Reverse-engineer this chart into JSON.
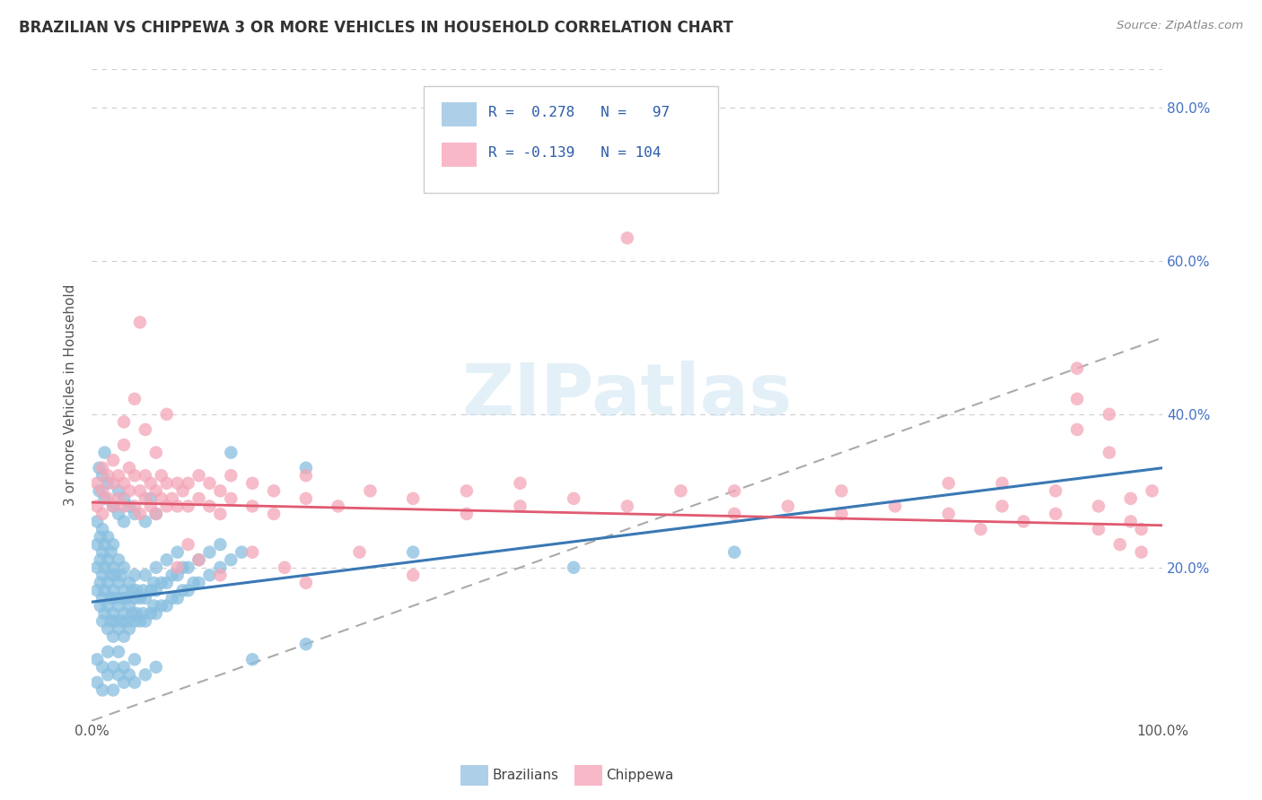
{
  "title": "BRAZILIAN VS CHIPPEWA 3 OR MORE VEHICLES IN HOUSEHOLD CORRELATION CHART",
  "source_text": "Source: ZipAtlas.com",
  "ylabel": "3 or more Vehicles in Household",
  "xlim": [
    0.0,
    1.0
  ],
  "ylim": [
    0.0,
    0.85
  ],
  "xtick_labels": [
    "0.0%",
    "",
    "",
    "",
    "",
    "100.0%"
  ],
  "xtick_vals": [
    0.0,
    0.2,
    0.4,
    0.6,
    0.8,
    1.0
  ],
  "ytick_labels_right": [
    "20.0%",
    "40.0%",
    "60.0%",
    "80.0%"
  ],
  "ytick_vals": [
    0.2,
    0.4,
    0.6,
    0.8
  ],
  "blue_color": "#89bfe0",
  "pink_color": "#f4a6b8",
  "blue_fill": "#aecfe8",
  "pink_fill": "#f9b8c8",
  "trend_blue": "#3a78b5",
  "trend_pink": "#e05a70",
  "watermark": "ZIPatlas",
  "background_color": "#ffffff",
  "grid_color": "#cccccc",
  "blue_trend": [
    0.0,
    0.155,
    1.0,
    0.33
  ],
  "pink_trend": [
    0.0,
    0.285,
    1.0,
    0.255
  ],
  "diag_line": [
    0.0,
    0.0,
    1.0,
    0.5
  ],
  "blue_scatter": [
    [
      0.005,
      0.17
    ],
    [
      0.005,
      0.2
    ],
    [
      0.005,
      0.23
    ],
    [
      0.005,
      0.26
    ],
    [
      0.008,
      0.15
    ],
    [
      0.008,
      0.18
    ],
    [
      0.008,
      0.21
    ],
    [
      0.008,
      0.24
    ],
    [
      0.01,
      0.13
    ],
    [
      0.01,
      0.16
    ],
    [
      0.01,
      0.19
    ],
    [
      0.01,
      0.22
    ],
    [
      0.01,
      0.25
    ],
    [
      0.012,
      0.14
    ],
    [
      0.012,
      0.17
    ],
    [
      0.012,
      0.2
    ],
    [
      0.012,
      0.23
    ],
    [
      0.015,
      0.12
    ],
    [
      0.015,
      0.15
    ],
    [
      0.015,
      0.18
    ],
    [
      0.015,
      0.21
    ],
    [
      0.015,
      0.24
    ],
    [
      0.018,
      0.13
    ],
    [
      0.018,
      0.16
    ],
    [
      0.018,
      0.19
    ],
    [
      0.018,
      0.22
    ],
    [
      0.02,
      0.11
    ],
    [
      0.02,
      0.14
    ],
    [
      0.02,
      0.17
    ],
    [
      0.02,
      0.2
    ],
    [
      0.02,
      0.23
    ],
    [
      0.022,
      0.13
    ],
    [
      0.022,
      0.16
    ],
    [
      0.022,
      0.19
    ],
    [
      0.025,
      0.12
    ],
    [
      0.025,
      0.15
    ],
    [
      0.025,
      0.18
    ],
    [
      0.025,
      0.21
    ],
    [
      0.028,
      0.13
    ],
    [
      0.028,
      0.16
    ],
    [
      0.028,
      0.19
    ],
    [
      0.03,
      0.11
    ],
    [
      0.03,
      0.14
    ],
    [
      0.03,
      0.17
    ],
    [
      0.03,
      0.2
    ],
    [
      0.033,
      0.13
    ],
    [
      0.033,
      0.16
    ],
    [
      0.035,
      0.12
    ],
    [
      0.035,
      0.15
    ],
    [
      0.035,
      0.18
    ],
    [
      0.038,
      0.14
    ],
    [
      0.038,
      0.17
    ],
    [
      0.04,
      0.13
    ],
    [
      0.04,
      0.16
    ],
    [
      0.04,
      0.19
    ],
    [
      0.042,
      0.14
    ],
    [
      0.042,
      0.17
    ],
    [
      0.045,
      0.13
    ],
    [
      0.045,
      0.16
    ],
    [
      0.048,
      0.14
    ],
    [
      0.048,
      0.17
    ],
    [
      0.05,
      0.13
    ],
    [
      0.05,
      0.16
    ],
    [
      0.05,
      0.19
    ],
    [
      0.055,
      0.14
    ],
    [
      0.055,
      0.17
    ],
    [
      0.058,
      0.15
    ],
    [
      0.058,
      0.18
    ],
    [
      0.06,
      0.14
    ],
    [
      0.06,
      0.17
    ],
    [
      0.06,
      0.2
    ],
    [
      0.065,
      0.15
    ],
    [
      0.065,
      0.18
    ],
    [
      0.07,
      0.15
    ],
    [
      0.07,
      0.18
    ],
    [
      0.07,
      0.21
    ],
    [
      0.075,
      0.16
    ],
    [
      0.075,
      0.19
    ],
    [
      0.08,
      0.16
    ],
    [
      0.08,
      0.19
    ],
    [
      0.08,
      0.22
    ],
    [
      0.085,
      0.17
    ],
    [
      0.085,
      0.2
    ],
    [
      0.09,
      0.17
    ],
    [
      0.09,
      0.2
    ],
    [
      0.095,
      0.18
    ],
    [
      0.1,
      0.18
    ],
    [
      0.1,
      0.21
    ],
    [
      0.11,
      0.19
    ],
    [
      0.11,
      0.22
    ],
    [
      0.12,
      0.2
    ],
    [
      0.12,
      0.23
    ],
    [
      0.13,
      0.21
    ],
    [
      0.14,
      0.22
    ],
    [
      0.005,
      0.08
    ],
    [
      0.005,
      0.05
    ],
    [
      0.01,
      0.07
    ],
    [
      0.01,
      0.04
    ],
    [
      0.015,
      0.06
    ],
    [
      0.015,
      0.09
    ],
    [
      0.02,
      0.07
    ],
    [
      0.02,
      0.04
    ],
    [
      0.025,
      0.06
    ],
    [
      0.025,
      0.09
    ],
    [
      0.03,
      0.07
    ],
    [
      0.03,
      0.05
    ],
    [
      0.035,
      0.06
    ],
    [
      0.04,
      0.05
    ],
    [
      0.04,
      0.08
    ],
    [
      0.05,
      0.06
    ],
    [
      0.06,
      0.07
    ],
    [
      0.007,
      0.3
    ],
    [
      0.007,
      0.33
    ],
    [
      0.01,
      0.32
    ],
    [
      0.012,
      0.29
    ],
    [
      0.012,
      0.35
    ],
    [
      0.015,
      0.31
    ],
    [
      0.02,
      0.28
    ],
    [
      0.025,
      0.27
    ],
    [
      0.025,
      0.3
    ],
    [
      0.03,
      0.26
    ],
    [
      0.03,
      0.29
    ],
    [
      0.035,
      0.28
    ],
    [
      0.04,
      0.27
    ],
    [
      0.05,
      0.26
    ],
    [
      0.055,
      0.29
    ],
    [
      0.06,
      0.27
    ],
    [
      0.13,
      0.35
    ],
    [
      0.2,
      0.33
    ],
    [
      0.2,
      0.1
    ],
    [
      0.15,
      0.08
    ],
    [
      0.3,
      0.22
    ],
    [
      0.45,
      0.2
    ],
    [
      0.6,
      0.22
    ]
  ],
  "pink_scatter": [
    [
      0.005,
      0.28
    ],
    [
      0.005,
      0.31
    ],
    [
      0.01,
      0.27
    ],
    [
      0.01,
      0.3
    ],
    [
      0.01,
      0.33
    ],
    [
      0.015,
      0.29
    ],
    [
      0.015,
      0.32
    ],
    [
      0.02,
      0.28
    ],
    [
      0.02,
      0.31
    ],
    [
      0.02,
      0.34
    ],
    [
      0.025,
      0.29
    ],
    [
      0.025,
      0.32
    ],
    [
      0.03,
      0.28
    ],
    [
      0.03,
      0.31
    ],
    [
      0.035,
      0.3
    ],
    [
      0.035,
      0.33
    ],
    [
      0.04,
      0.28
    ],
    [
      0.04,
      0.32
    ],
    [
      0.045,
      0.3
    ],
    [
      0.045,
      0.27
    ],
    [
      0.05,
      0.29
    ],
    [
      0.05,
      0.32
    ],
    [
      0.055,
      0.28
    ],
    [
      0.055,
      0.31
    ],
    [
      0.06,
      0.3
    ],
    [
      0.06,
      0.27
    ],
    [
      0.065,
      0.29
    ],
    [
      0.065,
      0.32
    ],
    [
      0.07,
      0.28
    ],
    [
      0.07,
      0.31
    ],
    [
      0.075,
      0.29
    ],
    [
      0.08,
      0.28
    ],
    [
      0.08,
      0.31
    ],
    [
      0.085,
      0.3
    ],
    [
      0.09,
      0.28
    ],
    [
      0.09,
      0.31
    ],
    [
      0.1,
      0.29
    ],
    [
      0.1,
      0.32
    ],
    [
      0.11,
      0.28
    ],
    [
      0.11,
      0.31
    ],
    [
      0.12,
      0.3
    ],
    [
      0.12,
      0.27
    ],
    [
      0.13,
      0.29
    ],
    [
      0.13,
      0.32
    ],
    [
      0.15,
      0.28
    ],
    [
      0.15,
      0.31
    ],
    [
      0.17,
      0.3
    ],
    [
      0.17,
      0.27
    ],
    [
      0.2,
      0.29
    ],
    [
      0.2,
      0.32
    ],
    [
      0.23,
      0.28
    ],
    [
      0.26,
      0.3
    ],
    [
      0.3,
      0.29
    ],
    [
      0.35,
      0.27
    ],
    [
      0.35,
      0.3
    ],
    [
      0.4,
      0.28
    ],
    [
      0.4,
      0.31
    ],
    [
      0.45,
      0.29
    ],
    [
      0.5,
      0.28
    ],
    [
      0.5,
      0.63
    ],
    [
      0.55,
      0.3
    ],
    [
      0.6,
      0.27
    ],
    [
      0.6,
      0.3
    ],
    [
      0.65,
      0.28
    ],
    [
      0.7,
      0.27
    ],
    [
      0.7,
      0.3
    ],
    [
      0.75,
      0.28
    ],
    [
      0.8,
      0.27
    ],
    [
      0.8,
      0.31
    ],
    [
      0.83,
      0.25
    ],
    [
      0.85,
      0.28
    ],
    [
      0.85,
      0.31
    ],
    [
      0.87,
      0.26
    ],
    [
      0.9,
      0.27
    ],
    [
      0.9,
      0.3
    ],
    [
      0.92,
      0.38
    ],
    [
      0.92,
      0.42
    ],
    [
      0.92,
      0.46
    ],
    [
      0.94,
      0.25
    ],
    [
      0.94,
      0.28
    ],
    [
      0.95,
      0.35
    ],
    [
      0.95,
      0.4
    ],
    [
      0.96,
      0.23
    ],
    [
      0.97,
      0.26
    ],
    [
      0.97,
      0.29
    ],
    [
      0.98,
      0.25
    ],
    [
      0.98,
      0.22
    ],
    [
      0.99,
      0.3
    ],
    [
      0.03,
      0.39
    ],
    [
      0.03,
      0.36
    ],
    [
      0.04,
      0.42
    ],
    [
      0.05,
      0.38
    ],
    [
      0.06,
      0.35
    ],
    [
      0.07,
      0.4
    ],
    [
      0.045,
      0.52
    ],
    [
      0.08,
      0.2
    ],
    [
      0.09,
      0.23
    ],
    [
      0.1,
      0.21
    ],
    [
      0.12,
      0.19
    ],
    [
      0.15,
      0.22
    ],
    [
      0.18,
      0.2
    ],
    [
      0.2,
      0.18
    ],
    [
      0.25,
      0.22
    ],
    [
      0.3,
      0.19
    ]
  ]
}
